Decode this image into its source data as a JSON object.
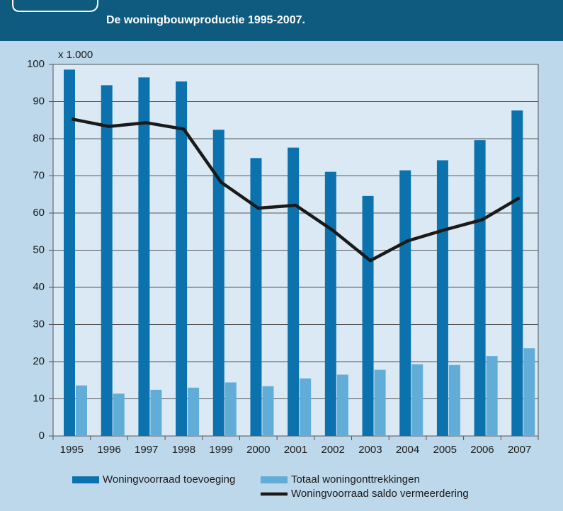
{
  "chart_data": {
    "type": "bar-line",
    "title": "De woningbouwproductie 1995-2007.",
    "y_unit_label": "x 1.000",
    "categories": [
      "1995",
      "1996",
      "1997",
      "1998",
      "1999",
      "2000",
      "2001",
      "2002",
      "2003",
      "2004",
      "2005",
      "2006",
      "2007"
    ],
    "series": [
      {
        "name": "Woningvoorraad toevoeging",
        "type": "bar",
        "color": "#0b72ad",
        "values": [
          98.6,
          94.4,
          96.5,
          95.4,
          82.4,
          74.8,
          77.6,
          71.1,
          64.6,
          71.5,
          74.2,
          79.6,
          87.6
        ]
      },
      {
        "name": "Totaal woningonttrekkingen",
        "type": "bar",
        "color": "#62acd8",
        "values": [
          13.6,
          11.4,
          12.4,
          13.0,
          14.4,
          13.4,
          15.5,
          16.5,
          17.8,
          19.3,
          19.1,
          21.5,
          23.6
        ]
      },
      {
        "name": "Woningvoorraad saldo vermeerdering",
        "type": "line",
        "color": "#1a1a1a",
        "values": [
          85.3,
          83.3,
          84.3,
          82.6,
          68.3,
          61.3,
          62.1,
          55.3,
          47.2,
          52.5,
          55.5,
          58.2,
          64.1
        ]
      }
    ],
    "ylim": [
      0,
      100
    ],
    "yticks": [
      0,
      10,
      20,
      30,
      40,
      50,
      60,
      70,
      80,
      90,
      100
    ],
    "grid": true
  }
}
